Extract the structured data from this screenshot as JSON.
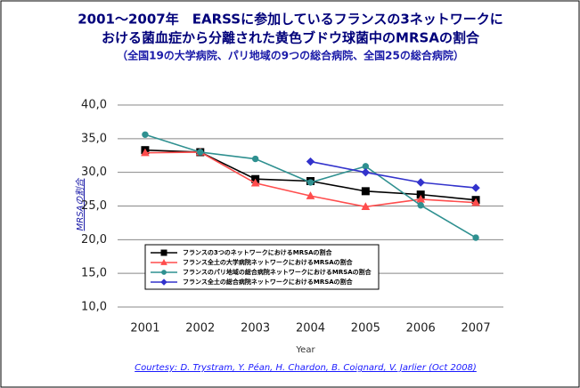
{
  "chart_data": {
    "type": "line",
    "title": [
      "2001～2007年　EARSSに参加しているフランスの3ネットワークに",
      "おける菌血症から分離された黄色ブドウ球菌中のMRSAの割合"
    ],
    "subtitle": "（全国19の大学病院、パリ地域の9つの総合病院、全国25の総合病院）",
    "y_label": "MRSAの割合",
    "x_label": "Year",
    "categories": [
      "2001",
      "2002",
      "2003",
      "2004",
      "2005",
      "2006",
      "2007"
    ],
    "series": [
      {
        "name": "フランスの3つのネットワークにおけるMRSAの割合",
        "color": "#000000",
        "marker": "square",
        "values": [
          33.3,
          33.0,
          29.0,
          28.7,
          27.2,
          26.7,
          25.9
        ]
      },
      {
        "name": "フランス全土の大学病院ネットワークにおけるMRSAの割合",
        "color": "#ff4d4d",
        "marker": "triangle",
        "values": [
          32.9,
          33.0,
          28.4,
          26.5,
          24.9,
          26.0,
          25.5
        ]
      },
      {
        "name": "フランスのパリ地域の総合病院ネットワークにおけるMRSAの割合",
        "color": "#2f9090",
        "marker": "circle",
        "values": [
          35.6,
          33.0,
          32.0,
          28.5,
          30.9,
          25.1,
          20.3
        ]
      },
      {
        "name": "フランス全土の総合病院ネットワークにおけるMRSAの割合",
        "color": "#3333cc",
        "marker": "diamond",
        "values": [
          null,
          null,
          null,
          31.6,
          30.0,
          28.5,
          27.7
        ]
      }
    ],
    "ylim": [
      10,
      40
    ],
    "yticks": [
      {
        "value": 10,
        "label": "10,0"
      },
      {
        "value": 15,
        "label": "15,0"
      },
      {
        "value": 20,
        "label": "20,0"
      },
      {
        "value": 25,
        "label": "25,0"
      },
      {
        "value": 30,
        "label": "30,0"
      },
      {
        "value": 35,
        "label": "35,0"
      },
      {
        "value": 40,
        "label": "40,0"
      }
    ],
    "grid": true,
    "legend": "lower left",
    "footnote": "Courtesy: D. Trystram, Y. Péan, H. Chardon, B. Coignard, V. Jarlier (Oct 2008)"
  }
}
